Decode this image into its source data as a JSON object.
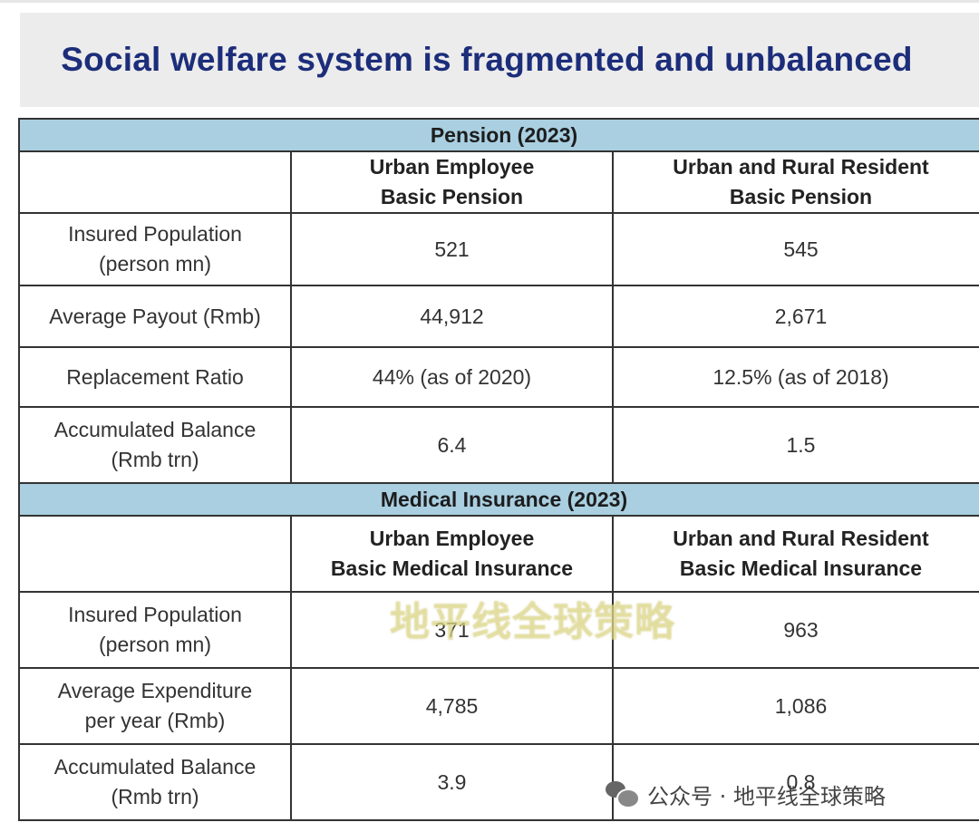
{
  "title": "Social welfare system is fragmented and unbalanced",
  "pension": {
    "header": "Pension (2023)",
    "columns": [
      "Urban Employee\nBasic Pension",
      "Urban and Rural Resident\nBasic Pension"
    ],
    "rows": [
      {
        "label": "Insured Population\n(person mn)",
        "values": [
          "521",
          "545"
        ]
      },
      {
        "label": "Average Payout (Rmb)",
        "values": [
          "44,912",
          "2,671"
        ]
      },
      {
        "label": "Replacement Ratio",
        "values": [
          "44% (as of 2020)",
          "12.5% (as of 2018)"
        ]
      },
      {
        "label": "Accumulated Balance\n(Rmb trn)",
        "values": [
          "6.4",
          "1.5"
        ]
      }
    ]
  },
  "medical": {
    "header": "Medical Insurance (2023)",
    "columns": [
      "Urban Employee\nBasic Medical Insurance",
      "Urban and Rural Resident\nBasic Medical Insurance"
    ],
    "rows": [
      {
        "label": "Insured Population\n(person mn)",
        "values": [
          "371",
          "963"
        ]
      },
      {
        "label": "Average Expenditure\nper year (Rmb)",
        "values": [
          "4,785",
          "1,086"
        ]
      },
      {
        "label": "Accumulated Balance\n(Rmb trn)",
        "values": [
          "3.9",
          "0.8"
        ]
      }
    ]
  },
  "watermark": "地平线全球策略",
  "account": {
    "icon": "wechat-icon",
    "text": "公众号 · 地平线全球策略"
  }
}
